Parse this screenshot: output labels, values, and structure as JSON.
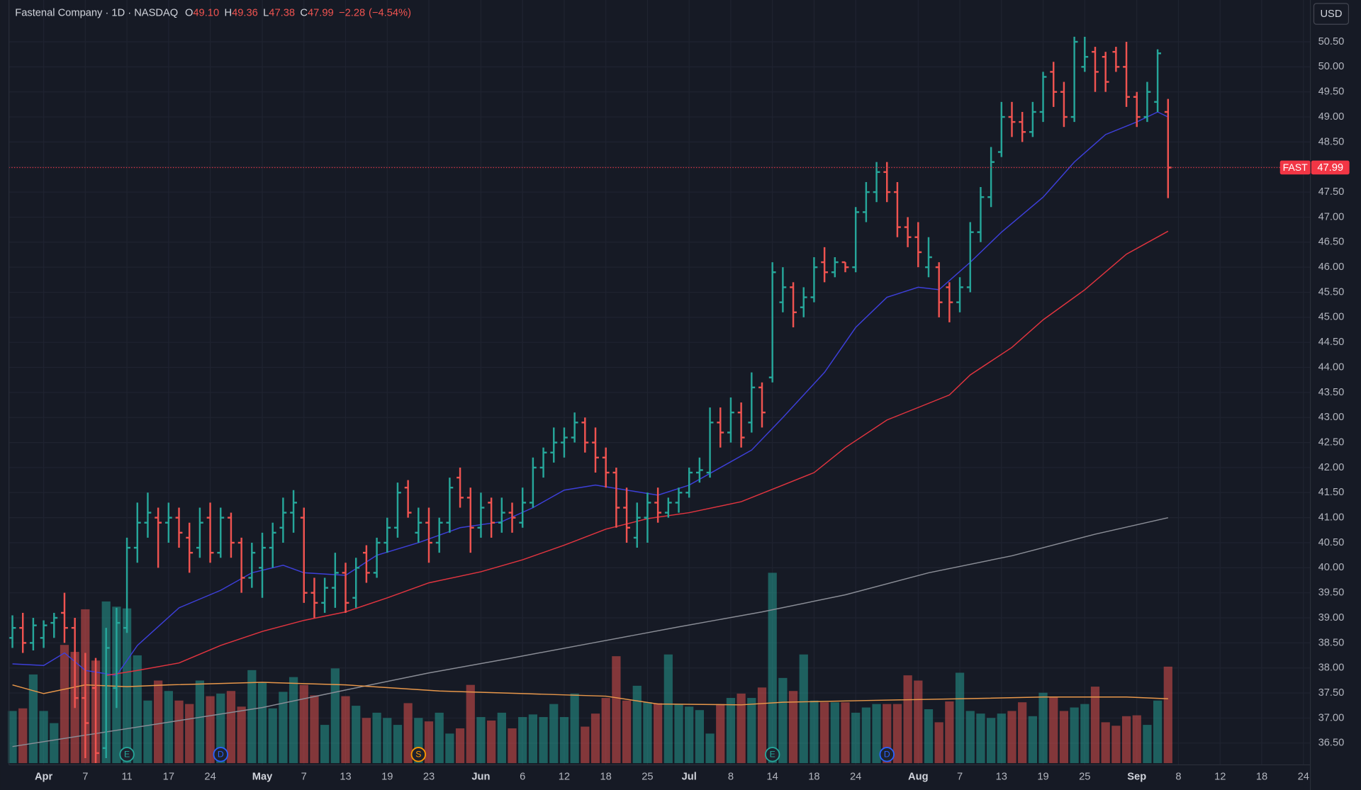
{
  "chart_data": {
    "type": "ohlc",
    "title": "Fastenal Company · 1D · NASDAQ",
    "header_fields": [
      {
        "label": "O",
        "value": 49.1,
        "value_label": "49.10"
      },
      {
        "label": "H",
        "value": 49.36,
        "value_label": "49.36"
      },
      {
        "label": "L",
        "value": 47.38,
        "value_label": "47.38"
      },
      {
        "label": "C",
        "value": 47.99,
        "value_label": "47.99"
      }
    ],
    "change": {
      "value": -2.28,
      "label": "−2.28"
    },
    "change_pct": {
      "value": -4.54,
      "label": "(−4.54%)"
    },
    "currency": "USD",
    "last_price": {
      "symbol": "FAST",
      "value": 47.99,
      "label": "47.99",
      "color": "#f23645"
    },
    "up_color": "#26a69a",
    "down_color": "#ef5350",
    "grid": true,
    "xlim": [
      -0.33,
      124.67
    ],
    "ylim": [
      36.1,
      51.3
    ],
    "xticks": [
      {
        "value": 3,
        "label": "Apr"
      },
      {
        "value": 7,
        "label": "7"
      },
      {
        "value": 11,
        "label": "11"
      },
      {
        "value": 15,
        "label": "17"
      },
      {
        "value": 19,
        "label": "24"
      },
      {
        "value": 24,
        "label": "May"
      },
      {
        "value": 28,
        "label": "7"
      },
      {
        "value": 32,
        "label": "13"
      },
      {
        "value": 36,
        "label": "19"
      },
      {
        "value": 40,
        "label": "23"
      },
      {
        "value": 45,
        "label": "Jun"
      },
      {
        "value": 49,
        "label": "6"
      },
      {
        "value": 53,
        "label": "12"
      },
      {
        "value": 57,
        "label": "18"
      },
      {
        "value": 61,
        "label": "25"
      },
      {
        "value": 65,
        "label": "Jul"
      },
      {
        "value": 69,
        "label": "8"
      },
      {
        "value": 73,
        "label": "14"
      },
      {
        "value": 77,
        "label": "18"
      },
      {
        "value": 81,
        "label": "24"
      },
      {
        "value": 87,
        "label": "Aug"
      },
      {
        "value": 91,
        "label": "7"
      },
      {
        "value": 95,
        "label": "13"
      },
      {
        "value": 99,
        "label": "19"
      },
      {
        "value": 103,
        "label": "25"
      },
      {
        "value": 108,
        "label": "Sep"
      },
      {
        "value": 112,
        "label": "8"
      },
      {
        "value": 116,
        "label": "12"
      },
      {
        "value": 120,
        "label": "18"
      },
      {
        "value": 124,
        "label": "24"
      }
    ],
    "yticks": [
      {
        "value": 36.5,
        "label": "36.50"
      },
      {
        "value": 37,
        "label": "37.00"
      },
      {
        "value": 37.5,
        "label": "37.50"
      },
      {
        "value": 38,
        "label": "38.00"
      },
      {
        "value": 38.5,
        "label": "38.50"
      },
      {
        "value": 39,
        "label": "39.00"
      },
      {
        "value": 39.5,
        "label": "39.50"
      },
      {
        "value": 40,
        "label": "40.00"
      },
      {
        "value": 40.5,
        "label": "40.50"
      },
      {
        "value": 41,
        "label": "41.00"
      },
      {
        "value": 41.5,
        "label": "41.50"
      },
      {
        "value": 42,
        "label": "42.00"
      },
      {
        "value": 42.5,
        "label": "42.50"
      },
      {
        "value": 43,
        "label": "43.00"
      },
      {
        "value": 43.5,
        "label": "43.50"
      },
      {
        "value": 44,
        "label": "44.00"
      },
      {
        "value": 44.5,
        "label": "44.50"
      },
      {
        "value": 45,
        "label": "45.00"
      },
      {
        "value": 45.5,
        "label": "45.50"
      },
      {
        "value": 46,
        "label": "46.00"
      },
      {
        "value": 46.5,
        "label": "46.50"
      },
      {
        "value": 47,
        "label": "47.00"
      },
      {
        "value": 47.5,
        "label": "47.50"
      },
      {
        "value": 48,
        "label": "48.00"
      },
      {
        "value": 48.5,
        "label": "48.50"
      },
      {
        "value": 49,
        "label": "49.00"
      },
      {
        "value": 49.5,
        "label": "49.50"
      },
      {
        "value": 50,
        "label": "50.00"
      },
      {
        "value": 50.5,
        "label": "50.50"
      }
    ],
    "ohlc": [
      [
        38.6,
        39.05,
        38.4,
        38.8
      ],
      [
        38.8,
        39.1,
        38.3,
        38.5
      ],
      [
        38.5,
        39.0,
        38.35,
        38.85
      ],
      [
        38.6,
        38.95,
        38.4,
        38.85
      ],
      [
        38.9,
        39.1,
        38.6,
        39.0
      ],
      [
        39.1,
        39.5,
        38.5,
        38.8
      ],
      [
        38.8,
        39.0,
        37.2,
        37.4
      ],
      [
        37.4,
        38.3,
        36.2,
        36.9
      ],
      [
        37.6,
        38.2,
        36.1,
        36.3
      ],
      [
        36.4,
        38.8,
        36.2,
        38.4
      ],
      [
        37.6,
        39.2,
        37.2,
        38.9
      ],
      [
        38.8,
        40.6,
        38.7,
        40.4
      ],
      [
        40.4,
        41.3,
        40.1,
        40.9
      ],
      [
        40.9,
        41.5,
        40.6,
        41.1
      ],
      [
        41.0,
        41.2,
        40.0,
        40.9
      ],
      [
        40.9,
        41.3,
        40.5,
        41.0
      ],
      [
        41.0,
        41.2,
        40.4,
        40.7
      ],
      [
        40.6,
        40.9,
        39.9,
        40.3
      ],
      [
        40.4,
        41.2,
        40.2,
        40.9
      ],
      [
        41.0,
        41.3,
        40.1,
        40.3
      ],
      [
        40.3,
        41.2,
        40.2,
        41.0
      ],
      [
        41.0,
        41.1,
        40.2,
        40.5
      ],
      [
        40.5,
        40.6,
        39.5,
        39.8
      ],
      [
        39.8,
        40.5,
        39.6,
        40.3
      ],
      [
        40.0,
        40.7,
        39.4,
        40.4
      ],
      [
        40.4,
        40.9,
        40.0,
        40.7
      ],
      [
        40.8,
        41.4,
        40.5,
        41.1
      ],
      [
        41.1,
        41.55,
        40.7,
        41.3
      ],
      [
        41.0,
        41.2,
        39.3,
        39.5
      ],
      [
        39.5,
        39.8,
        39.0,
        39.3
      ],
      [
        39.3,
        39.8,
        39.1,
        39.6
      ],
      [
        39.6,
        40.3,
        39.2,
        39.9
      ],
      [
        39.9,
        40.1,
        39.1,
        39.3
      ],
      [
        39.4,
        40.2,
        39.2,
        40.0
      ],
      [
        40.3,
        40.45,
        39.7,
        39.9
      ],
      [
        39.9,
        40.6,
        39.8,
        40.5
      ],
      [
        40.5,
        41.0,
        40.3,
        40.8
      ],
      [
        40.8,
        41.7,
        40.6,
        41.5
      ],
      [
        41.6,
        41.75,
        41.0,
        41.1
      ],
      [
        40.7,
        41.2,
        40.5,
        40.9
      ],
      [
        40.9,
        41.2,
        40.1,
        40.5
      ],
      [
        40.5,
        41.0,
        40.3,
        40.9
      ],
      [
        40.9,
        41.8,
        40.7,
        41.6
      ],
      [
        41.8,
        42.0,
        41.2,
        41.4
      ],
      [
        41.4,
        41.6,
        40.3,
        40.8
      ],
      [
        40.8,
        41.5,
        40.6,
        41.2
      ],
      [
        41.3,
        41.4,
        40.6,
        40.9
      ],
      [
        40.9,
        41.4,
        40.7,
        41.1
      ],
      [
        41.1,
        41.3,
        40.7,
        41.0
      ],
      [
        40.9,
        41.6,
        40.8,
        41.3
      ],
      [
        41.3,
        42.2,
        41.2,
        42.0
      ],
      [
        42.0,
        42.4,
        41.8,
        42.3
      ],
      [
        42.3,
        42.8,
        42.1,
        42.5
      ],
      [
        42.5,
        42.8,
        42.2,
        42.6
      ],
      [
        42.6,
        43.1,
        42.5,
        42.9
      ],
      [
        42.9,
        43.0,
        42.3,
        42.5
      ],
      [
        42.5,
        42.8,
        41.9,
        42.2
      ],
      [
        42.2,
        42.4,
        41.6,
        41.9
      ],
      [
        41.9,
        42.0,
        40.8,
        41.2
      ],
      [
        41.2,
        41.6,
        40.5,
        40.8
      ],
      [
        40.6,
        41.3,
        40.4,
        41.0
      ],
      [
        41.0,
        41.5,
        40.5,
        41.3
      ],
      [
        41.3,
        41.6,
        40.9,
        41.1
      ],
      [
        41.1,
        41.4,
        41.0,
        41.3
      ],
      [
        41.3,
        41.6,
        41.1,
        41.5
      ],
      [
        41.5,
        42.0,
        41.4,
        41.9
      ],
      [
        41.9,
        42.2,
        41.7,
        41.95
      ],
      [
        41.9,
        43.2,
        41.8,
        42.9
      ],
      [
        42.9,
        43.2,
        42.4,
        42.7
      ],
      [
        42.7,
        43.4,
        42.5,
        43.1
      ],
      [
        43.1,
        43.3,
        42.4,
        42.6
      ],
      [
        42.9,
        43.9,
        42.7,
        43.6
      ],
      [
        43.6,
        43.7,
        42.8,
        43.1
      ],
      [
        43.8,
        46.1,
        43.7,
        45.9
      ],
      [
        45.3,
        46.0,
        45.1,
        45.6
      ],
      [
        45.6,
        45.7,
        44.8,
        45.1
      ],
      [
        45.2,
        45.6,
        45.0,
        45.4
      ],
      [
        45.4,
        46.2,
        45.3,
        46.0
      ],
      [
        46.1,
        46.4,
        45.7,
        45.9
      ],
      [
        45.9,
        46.2,
        45.8,
        46.1
      ],
      [
        46.1,
        46.1,
        45.9,
        46.0
      ],
      [
        46.0,
        47.2,
        45.9,
        47.1
      ],
      [
        47.1,
        47.7,
        46.9,
        47.5
      ],
      [
        47.5,
        48.1,
        47.3,
        47.9
      ],
      [
        47.9,
        48.1,
        47.3,
        47.5
      ],
      [
        47.5,
        47.7,
        46.6,
        46.8
      ],
      [
        46.8,
        47.0,
        46.4,
        46.6
      ],
      [
        46.6,
        46.9,
        46.0,
        46.3
      ],
      [
        46.0,
        46.6,
        45.8,
        46.2
      ],
      [
        46.0,
        46.1,
        45.0,
        45.3
      ],
      [
        45.6,
        45.7,
        44.9,
        45.3
      ],
      [
        45.3,
        45.8,
        45.1,
        45.6
      ],
      [
        45.6,
        46.9,
        45.5,
        46.7
      ],
      [
        46.7,
        47.6,
        46.5,
        47.4
      ],
      [
        47.4,
        48.4,
        47.2,
        48.1
      ],
      [
        48.3,
        49.3,
        48.2,
        49.0
      ],
      [
        49.0,
        49.3,
        48.6,
        48.9
      ],
      [
        48.9,
        49.1,
        48.5,
        48.7
      ],
      [
        48.7,
        49.3,
        48.6,
        49.1
      ],
      [
        49.1,
        49.9,
        48.9,
        49.8
      ],
      [
        49.9,
        50.1,
        49.2,
        49.5
      ],
      [
        49.5,
        49.7,
        48.8,
        49.0
      ],
      [
        49.0,
        50.6,
        48.9,
        50.5
      ],
      [
        50.0,
        50.6,
        49.9,
        50.2
      ],
      [
        50.3,
        50.4,
        49.5,
        49.9
      ],
      [
        50.2,
        50.3,
        49.5,
        49.7
      ],
      [
        50.3,
        50.4,
        49.9,
        50.0
      ],
      [
        50.0,
        50.5,
        49.2,
        49.4
      ],
      [
        49.4,
        49.5,
        48.8,
        49.0
      ],
      [
        49.0,
        49.7,
        48.9,
        49.5
      ],
      [
        49.3,
        50.35,
        49.1,
        50.27
      ],
      [
        49.1,
        49.36,
        47.38,
        47.99
      ]
    ],
    "volume": [
      3.0,
      3.15,
      5.1,
      3.0,
      2.3,
      6.8,
      6.4,
      8.85,
      5.9,
      9.3,
      9.0,
      8.9,
      6.2,
      3.6,
      4.75,
      4.15,
      3.6,
      3.4,
      4.75,
      3.85,
      4.0,
      4.15,
      3.25,
      5.35,
      4.65,
      3.15,
      4.1,
      4.95,
      4.5,
      3.9,
      2.2,
      5.45,
      3.85,
      3.3,
      2.6,
      2.9,
      2.6,
      2.2,
      3.45,
      2.6,
      2.4,
      2.9,
      1.7,
      2.0,
      4.5,
      2.65,
      2.45,
      2.9,
      2.0,
      2.65,
      2.8,
      2.65,
      3.4,
      2.65,
      4.0,
      2.1,
      2.85,
      3.75,
      6.15,
      3.6,
      4.45,
      3.5,
      3.45,
      6.25,
      3.4,
      3.25,
      3.05,
      1.7,
      3.4,
      3.75,
      4.0,
      3.75,
      4.35,
      10.95,
      4.9,
      4.15,
      6.25,
      3.6,
      3.5,
      3.5,
      3.5,
      2.9,
      3.2,
      3.4,
      3.4,
      3.4,
      5.05,
      4.75,
      3.1,
      2.35,
      3.55,
      5.2,
      3.0,
      2.85,
      2.6,
      2.85,
      3.0,
      3.5,
      2.7,
      4.05,
      3.8,
      3.0,
      3.2,
      3.4,
      4.4,
      2.35,
      2.15,
      2.7,
      2.75,
      2.2,
      3.6,
      5.55
    ],
    "lines": [
      {
        "color": "#3d3fd9",
        "x": [
          0,
          3,
          5,
          7,
          10,
          12,
          16,
          20,
          23,
          26,
          28,
          32,
          35,
          39,
          43,
          47,
          50,
          53,
          56,
          59,
          62,
          65,
          68,
          71,
          74,
          78,
          81,
          84,
          87,
          89,
          92,
          95,
          99,
          102,
          105,
          108,
          110,
          111
        ],
        "values": [
          38.08,
          38.05,
          38.3,
          37.95,
          37.85,
          38.45,
          39.2,
          39.55,
          39.9,
          40.05,
          39.9,
          39.85,
          40.25,
          40.5,
          40.8,
          40.92,
          41.2,
          41.55,
          41.65,
          41.55,
          41.45,
          41.65,
          42.0,
          42.35,
          43.0,
          43.9,
          44.8,
          45.4,
          45.6,
          45.55,
          46.1,
          46.7,
          47.4,
          48.1,
          48.65,
          48.9,
          49.1,
          49.0
        ]
      },
      {
        "color": "#e0343f",
        "x": [
          9,
          12,
          16,
          20,
          24,
          28,
          32,
          36,
          40,
          45,
          49,
          53,
          57,
          61,
          65,
          70,
          74,
          77,
          80,
          84,
          87,
          90,
          92,
          96,
          99,
          103,
          107,
          111
        ],
        "values": [
          37.85,
          37.95,
          38.1,
          38.45,
          38.73,
          38.95,
          39.12,
          39.4,
          39.7,
          39.92,
          40.16,
          40.45,
          40.77,
          40.98,
          41.1,
          41.32,
          41.65,
          41.9,
          42.4,
          42.95,
          43.2,
          43.45,
          43.85,
          44.4,
          44.95,
          45.55,
          46.26,
          46.72
        ]
      },
      {
        "color": "#8a8d96",
        "x": [
          0,
          8,
          16,
          24,
          32,
          40,
          48,
          56,
          64,
          72,
          80,
          88,
          96,
          104,
          111
        ],
        "values": [
          36.43,
          36.69,
          36.95,
          37.21,
          37.56,
          37.9,
          38.2,
          38.51,
          38.82,
          39.12,
          39.46,
          39.9,
          40.24,
          40.67,
          41.0
        ]
      },
      {
        "color": "#e8974a",
        "axis": "volume",
        "x": [
          0,
          3,
          7,
          11,
          15,
          24,
          32,
          41,
          49,
          57,
          62,
          70,
          74,
          82,
          91,
          99,
          107,
          111
        ],
        "values": [
          4.5,
          4.0,
          4.5,
          4.4,
          4.5,
          4.65,
          4.5,
          4.15,
          4.0,
          3.85,
          3.4,
          3.35,
          3.5,
          3.6,
          3.7,
          3.8,
          3.8,
          3.7
        ]
      }
    ],
    "events": [
      {
        "label": "E",
        "x": 11,
        "color": "#26a69a"
      },
      {
        "label": "D",
        "x": 20,
        "color": "#2962ff"
      },
      {
        "label": "S",
        "x": 39,
        "color": "#ff9800"
      },
      {
        "label": "E",
        "x": 73,
        "color": "#26a69a"
      },
      {
        "label": "D",
        "x": 84,
        "color": "#2962ff"
      }
    ]
  }
}
